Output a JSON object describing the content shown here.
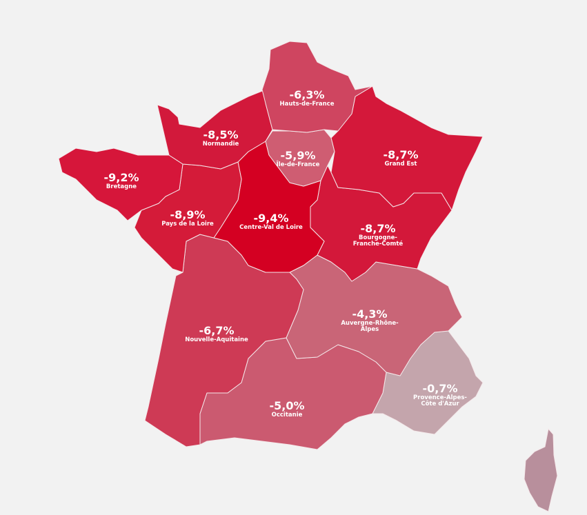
{
  "map": {
    "regions": [
      {
        "name": "Hauts-de-France",
        "value": -6.3,
        "value_label": "-6,3%",
        "color": "#cf4560"
      },
      {
        "name": "Île-de-France",
        "value": -5.9,
        "value_label": "-5,9%",
        "color": "#cf5d72"
      },
      {
        "name": "Grand Est",
        "value": -8.7,
        "value_label": "-8,7%",
        "color": "#d4183a"
      },
      {
        "name": "Normandie",
        "value": -8.5,
        "value_label": "-8,5%",
        "color": "#d2193b"
      },
      {
        "name": "Bretagne",
        "value": -9.2,
        "value_label": "-9,2%",
        "color": "#d6163a"
      },
      {
        "name": "Pays de la Loire",
        "value": -8.9,
        "value_label": "-8,9%",
        "color": "#d41b39"
      },
      {
        "name": "Centre-Val de Loire",
        "value": -9.4,
        "value_label": "-9,4%",
        "color": "#d40022"
      },
      {
        "name": "Bourgogne-Franche-Comté",
        "value": -8.7,
        "value_label": "-8,7%",
        "color": "#d3183a"
      },
      {
        "name": "Nouvelle-Aquitaine",
        "value": -6.7,
        "value_label": "-6,7%",
        "color": "#ce3a55"
      },
      {
        "name": "Auvergne-Rhône-Alpes",
        "value": -4.3,
        "value_label": "-4,3%",
        "color": "#c96577"
      },
      {
        "name": "Occitanie",
        "value": -5.0,
        "value_label": "-5,0%",
        "color": "#cb5a70"
      },
      {
        "name": "Provence-Alpes-Côte d'Azur",
        "value": -0.7,
        "value_label": "-0,7%",
        "color": "#c4a5ac"
      }
    ]
  }
}
